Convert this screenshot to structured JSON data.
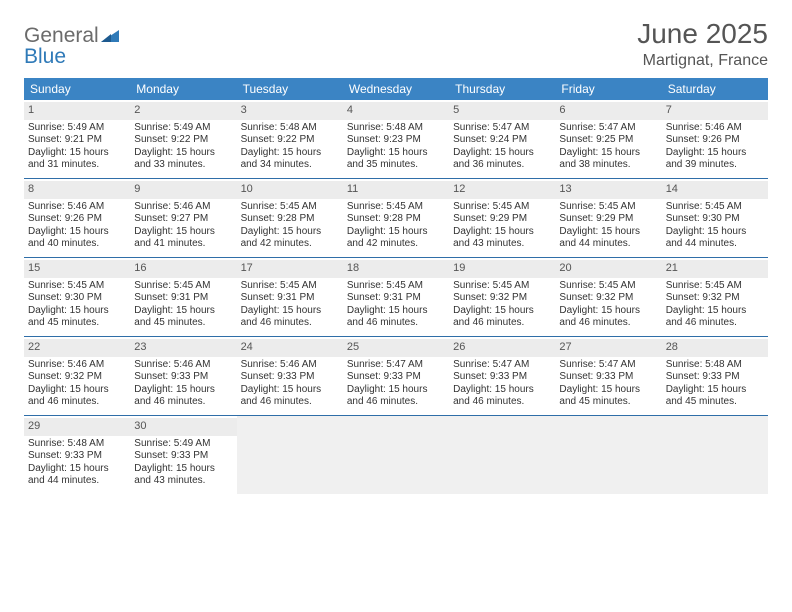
{
  "logo": {
    "general": "General",
    "blue": "Blue"
  },
  "title": "June 2025",
  "subtitle": "Martignat, France",
  "colors": {
    "header_bg": "#3b84c4",
    "header_text": "#ffffff",
    "week_divider": "#2f6ea8",
    "daynum_bg": "#ececec",
    "cell_text": "#333333",
    "title_text": "#555555",
    "logo_gray": "#6b6b6b",
    "logo_blue": "#2f7ab8",
    "empty_cell": "#f0f0f0"
  },
  "day_headers": [
    "Sunday",
    "Monday",
    "Tuesday",
    "Wednesday",
    "Thursday",
    "Friday",
    "Saturday"
  ],
  "weeks": [
    [
      {
        "n": "1",
        "sr": "Sunrise: 5:49 AM",
        "ss": "Sunset: 9:21 PM",
        "d1": "Daylight: 15 hours",
        "d2": "and 31 minutes."
      },
      {
        "n": "2",
        "sr": "Sunrise: 5:49 AM",
        "ss": "Sunset: 9:22 PM",
        "d1": "Daylight: 15 hours",
        "d2": "and 33 minutes."
      },
      {
        "n": "3",
        "sr": "Sunrise: 5:48 AM",
        "ss": "Sunset: 9:22 PM",
        "d1": "Daylight: 15 hours",
        "d2": "and 34 minutes."
      },
      {
        "n": "4",
        "sr": "Sunrise: 5:48 AM",
        "ss": "Sunset: 9:23 PM",
        "d1": "Daylight: 15 hours",
        "d2": "and 35 minutes."
      },
      {
        "n": "5",
        "sr": "Sunrise: 5:47 AM",
        "ss": "Sunset: 9:24 PM",
        "d1": "Daylight: 15 hours",
        "d2": "and 36 minutes."
      },
      {
        "n": "6",
        "sr": "Sunrise: 5:47 AM",
        "ss": "Sunset: 9:25 PM",
        "d1": "Daylight: 15 hours",
        "d2": "and 38 minutes."
      },
      {
        "n": "7",
        "sr": "Sunrise: 5:46 AM",
        "ss": "Sunset: 9:26 PM",
        "d1": "Daylight: 15 hours",
        "d2": "and 39 minutes."
      }
    ],
    [
      {
        "n": "8",
        "sr": "Sunrise: 5:46 AM",
        "ss": "Sunset: 9:26 PM",
        "d1": "Daylight: 15 hours",
        "d2": "and 40 minutes."
      },
      {
        "n": "9",
        "sr": "Sunrise: 5:46 AM",
        "ss": "Sunset: 9:27 PM",
        "d1": "Daylight: 15 hours",
        "d2": "and 41 minutes."
      },
      {
        "n": "10",
        "sr": "Sunrise: 5:45 AM",
        "ss": "Sunset: 9:28 PM",
        "d1": "Daylight: 15 hours",
        "d2": "and 42 minutes."
      },
      {
        "n": "11",
        "sr": "Sunrise: 5:45 AM",
        "ss": "Sunset: 9:28 PM",
        "d1": "Daylight: 15 hours",
        "d2": "and 42 minutes."
      },
      {
        "n": "12",
        "sr": "Sunrise: 5:45 AM",
        "ss": "Sunset: 9:29 PM",
        "d1": "Daylight: 15 hours",
        "d2": "and 43 minutes."
      },
      {
        "n": "13",
        "sr": "Sunrise: 5:45 AM",
        "ss": "Sunset: 9:29 PM",
        "d1": "Daylight: 15 hours",
        "d2": "and 44 minutes."
      },
      {
        "n": "14",
        "sr": "Sunrise: 5:45 AM",
        "ss": "Sunset: 9:30 PM",
        "d1": "Daylight: 15 hours",
        "d2": "and 44 minutes."
      }
    ],
    [
      {
        "n": "15",
        "sr": "Sunrise: 5:45 AM",
        "ss": "Sunset: 9:30 PM",
        "d1": "Daylight: 15 hours",
        "d2": "and 45 minutes."
      },
      {
        "n": "16",
        "sr": "Sunrise: 5:45 AM",
        "ss": "Sunset: 9:31 PM",
        "d1": "Daylight: 15 hours",
        "d2": "and 45 minutes."
      },
      {
        "n": "17",
        "sr": "Sunrise: 5:45 AM",
        "ss": "Sunset: 9:31 PM",
        "d1": "Daylight: 15 hours",
        "d2": "and 46 minutes."
      },
      {
        "n": "18",
        "sr": "Sunrise: 5:45 AM",
        "ss": "Sunset: 9:31 PM",
        "d1": "Daylight: 15 hours",
        "d2": "and 46 minutes."
      },
      {
        "n": "19",
        "sr": "Sunrise: 5:45 AM",
        "ss": "Sunset: 9:32 PM",
        "d1": "Daylight: 15 hours",
        "d2": "and 46 minutes."
      },
      {
        "n": "20",
        "sr": "Sunrise: 5:45 AM",
        "ss": "Sunset: 9:32 PM",
        "d1": "Daylight: 15 hours",
        "d2": "and 46 minutes."
      },
      {
        "n": "21",
        "sr": "Sunrise: 5:45 AM",
        "ss": "Sunset: 9:32 PM",
        "d1": "Daylight: 15 hours",
        "d2": "and 46 minutes."
      }
    ],
    [
      {
        "n": "22",
        "sr": "Sunrise: 5:46 AM",
        "ss": "Sunset: 9:32 PM",
        "d1": "Daylight: 15 hours",
        "d2": "and 46 minutes."
      },
      {
        "n": "23",
        "sr": "Sunrise: 5:46 AM",
        "ss": "Sunset: 9:33 PM",
        "d1": "Daylight: 15 hours",
        "d2": "and 46 minutes."
      },
      {
        "n": "24",
        "sr": "Sunrise: 5:46 AM",
        "ss": "Sunset: 9:33 PM",
        "d1": "Daylight: 15 hours",
        "d2": "and 46 minutes."
      },
      {
        "n": "25",
        "sr": "Sunrise: 5:47 AM",
        "ss": "Sunset: 9:33 PM",
        "d1": "Daylight: 15 hours",
        "d2": "and 46 minutes."
      },
      {
        "n": "26",
        "sr": "Sunrise: 5:47 AM",
        "ss": "Sunset: 9:33 PM",
        "d1": "Daylight: 15 hours",
        "d2": "and 46 minutes."
      },
      {
        "n": "27",
        "sr": "Sunrise: 5:47 AM",
        "ss": "Sunset: 9:33 PM",
        "d1": "Daylight: 15 hours",
        "d2": "and 45 minutes."
      },
      {
        "n": "28",
        "sr": "Sunrise: 5:48 AM",
        "ss": "Sunset: 9:33 PM",
        "d1": "Daylight: 15 hours",
        "d2": "and 45 minutes."
      }
    ],
    [
      {
        "n": "29",
        "sr": "Sunrise: 5:48 AM",
        "ss": "Sunset: 9:33 PM",
        "d1": "Daylight: 15 hours",
        "d2": "and 44 minutes."
      },
      {
        "n": "30",
        "sr": "Sunrise: 5:49 AM",
        "ss": "Sunset: 9:33 PM",
        "d1": "Daylight: 15 hours",
        "d2": "and 43 minutes."
      },
      null,
      null,
      null,
      null,
      null
    ]
  ]
}
